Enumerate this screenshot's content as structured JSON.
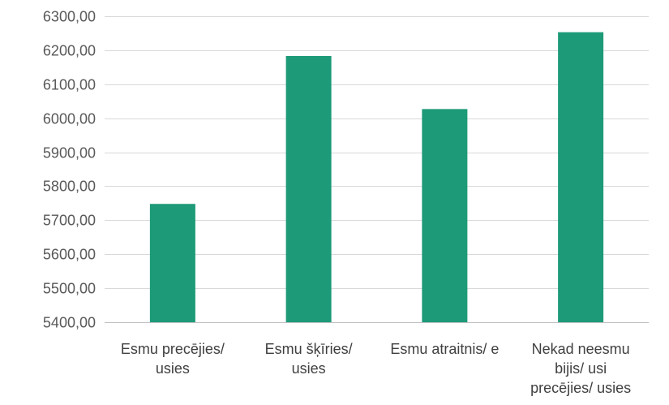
{
  "chart_data": {
    "type": "bar",
    "title": "",
    "xlabel": "",
    "ylabel": "",
    "categories": [
      [
        "Esmu precējies/",
        "usies"
      ],
      [
        "Esmu šķīries/",
        "usies"
      ],
      [
        "Esmu atraitnis/ e"
      ],
      [
        "Nekad neesmu",
        "bijis/ usi",
        "precējies/ usies"
      ]
    ],
    "values": [
      5748,
      6183,
      6027,
      6253
    ],
    "ylim": [
      5400,
      6300
    ],
    "yticks": [
      5400,
      5500,
      5600,
      5700,
      5800,
      5900,
      6000,
      6100,
      6200,
      6300
    ],
    "ytick_labels": [
      "5400,00",
      "5500,00",
      "5600,00",
      "5700,00",
      "5800,00",
      "5900,00",
      "6000,00",
      "6100,00",
      "6200,00",
      "6300,00"
    ],
    "grid": true,
    "legend": false,
    "colors": {
      "bar": "#1d9a78",
      "grid": "#d9d9d9",
      "axis": "#bfbfbf"
    }
  }
}
